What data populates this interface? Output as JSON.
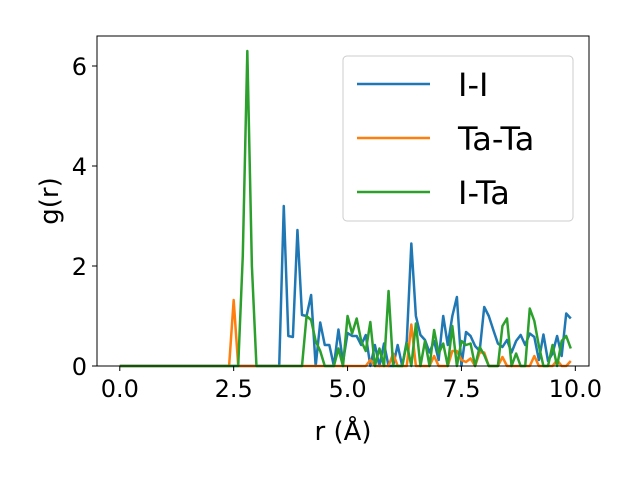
{
  "chart_data": {
    "type": "line",
    "xlabel": "r (Å)",
    "ylabel": "g(r)",
    "xlim": [
      -0.5,
      10.3
    ],
    "ylim": [
      0,
      6.6
    ],
    "xticks": [
      0.0,
      2.5,
      5.0,
      7.5,
      10.0
    ],
    "xtick_labels": [
      "0.0",
      "2.5",
      "5.0",
      "7.5",
      "10.0"
    ],
    "yticks": [
      0,
      2,
      4,
      6
    ],
    "ytick_labels": [
      "0",
      "2",
      "4",
      "6"
    ],
    "grid": false,
    "legend_position": "top-right",
    "series": [
      {
        "name": "I-I",
        "color": "#1f77b4",
        "x": [
          0.0,
          3.5,
          3.6,
          3.7,
          3.8,
          3.9,
          4.0,
          4.1,
          4.2,
          4.3,
          4.4,
          4.5,
          4.6,
          4.7,
          4.8,
          4.9,
          5.0,
          5.1,
          5.2,
          5.3,
          5.4,
          5.5,
          5.6,
          5.7,
          5.8,
          5.9,
          6.0,
          6.1,
          6.2,
          6.3,
          6.4,
          6.5,
          6.6,
          6.7,
          6.8,
          6.9,
          7.0,
          7.1,
          7.2,
          7.3,
          7.4,
          7.5,
          7.6,
          7.7,
          7.8,
          7.9,
          8.0,
          8.1,
          8.2,
          8.3,
          8.4,
          8.5,
          8.6,
          8.7,
          8.8,
          8.9,
          9.0,
          9.1,
          9.2,
          9.3,
          9.4,
          9.5,
          9.6,
          9.7,
          9.8,
          9.9
        ],
        "y": [
          0.0,
          0.0,
          3.2,
          0.6,
          0.58,
          2.72,
          1.02,
          1.0,
          1.42,
          0.0,
          0.87,
          0.42,
          0.42,
          0.0,
          0.73,
          0.08,
          0.66,
          0.6,
          0.6,
          0.42,
          0.62,
          0.0,
          0.42,
          0.0,
          0.45,
          0.0,
          0.0,
          0.42,
          0.0,
          0.5,
          2.45,
          1.0,
          0.62,
          0.52,
          0.27,
          0.5,
          0.12,
          1.0,
          0.42,
          1.0,
          1.38,
          0.0,
          0.68,
          0.6,
          0.4,
          0.3,
          1.18,
          1.0,
          0.72,
          0.45,
          0.38,
          0.52,
          0.27,
          0.5,
          0.62,
          0.42,
          0.65,
          0.58,
          0.12,
          0.63,
          0.1,
          0.25,
          0.6,
          0.2,
          1.05,
          0.95
        ]
      },
      {
        "name": "Ta-Ta",
        "color": "#ff7f0e",
        "x": [
          0.0,
          2.4,
          2.5,
          2.6,
          2.7,
          5.3,
          5.4,
          5.5,
          5.6,
          5.7,
          5.8,
          5.9,
          6.0,
          6.1,
          6.2,
          6.3,
          6.4,
          6.5,
          6.6,
          6.7,
          6.8,
          6.9,
          7.0,
          7.1,
          7.2,
          7.3,
          7.4,
          7.5,
          7.6,
          7.7,
          7.8,
          7.9,
          8.0,
          8.1,
          8.2,
          8.3,
          8.4,
          8.5,
          8.6,
          8.7,
          8.8,
          8.9,
          9.0,
          9.1,
          9.2,
          9.3,
          9.4,
          9.5,
          9.6,
          9.7,
          9.8,
          9.9
        ],
        "y": [
          0.0,
          0.0,
          1.32,
          0.0,
          0.0,
          0.0,
          0.0,
          0.12,
          0.0,
          0.0,
          0.0,
          0.0,
          0.25,
          0.0,
          0.0,
          0.0,
          0.83,
          0.0,
          0.0,
          0.0,
          0.0,
          0.2,
          0.0,
          0.0,
          0.0,
          0.3,
          0.3,
          0.12,
          0.08,
          0.15,
          0.0,
          0.27,
          0.27,
          0.0,
          0.0,
          0.0,
          0.18,
          0.0,
          0.0,
          0.0,
          0.0,
          0.0,
          0.0,
          0.2,
          0.0,
          0.0,
          0.0,
          0.0,
          0.12,
          0.0,
          0.0,
          0.1
        ]
      },
      {
        "name": "I-Ta",
        "color": "#2ca02c",
        "x": [
          0.0,
          2.6,
          2.7,
          2.8,
          2.9,
          3.0,
          3.1,
          4.0,
          4.1,
          4.2,
          4.3,
          4.4,
          4.5,
          4.6,
          4.7,
          4.8,
          4.9,
          5.0,
          5.1,
          5.2,
          5.3,
          5.4,
          5.5,
          5.6,
          5.7,
          5.8,
          5.9,
          6.0,
          6.1,
          6.2,
          6.3,
          6.4,
          6.5,
          6.6,
          6.7,
          6.8,
          6.9,
          7.0,
          7.1,
          7.2,
          7.3,
          7.4,
          7.5,
          7.6,
          7.7,
          7.8,
          7.9,
          8.0,
          8.1,
          8.2,
          8.3,
          8.4,
          8.5,
          8.6,
          8.7,
          8.8,
          8.9,
          9.0,
          9.1,
          9.2,
          9.3,
          9.4,
          9.5,
          9.6,
          9.7,
          9.8,
          9.9
        ],
        "y": [
          0.0,
          0.0,
          2.2,
          6.3,
          2.0,
          0.0,
          0.0,
          0.0,
          1.0,
          0.92,
          0.5,
          0.3,
          0.0,
          0.0,
          0.0,
          0.35,
          0.0,
          1.0,
          0.65,
          0.95,
          0.5,
          0.3,
          0.88,
          0.0,
          0.35,
          0.0,
          1.5,
          0.0,
          0.0,
          0.0,
          0.45,
          0.0,
          0.85,
          0.0,
          0.5,
          0.0,
          0.72,
          0.25,
          0.45,
          0.0,
          0.8,
          0.0,
          0.5,
          0.42,
          0.45,
          0.0,
          0.38,
          0.22,
          0.0,
          0.0,
          0.0,
          0.8,
          0.95,
          0.0,
          0.25,
          0.0,
          0.0,
          1.15,
          0.9,
          0.4,
          0.0,
          0.0,
          0.42,
          0.0,
          0.5,
          0.6,
          0.35
        ]
      }
    ]
  }
}
